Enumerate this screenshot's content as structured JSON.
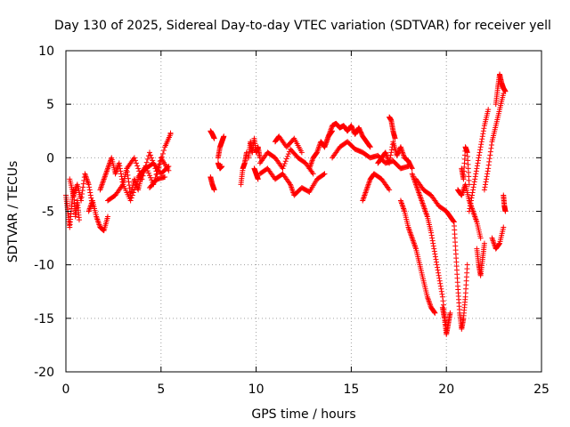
{
  "chart_data": {
    "type": "scatter",
    "title": "Day 130 of 2025, Sidereal Day-to-day VTEC variation (SDTVAR) for receiver yell",
    "xlabel": "GPS time / hours",
    "ylabel": "SDTVAR / TECUs",
    "xlim": [
      0,
      25
    ],
    "ylim": [
      -20,
      10
    ],
    "grid": true,
    "marker": "+",
    "color": "#ff0000",
    "xticks": [
      0,
      5,
      10,
      15,
      20,
      25
    ],
    "yticks": [
      -20,
      -15,
      -10,
      -5,
      0,
      5,
      10
    ],
    "xtick_labels": [
      "0",
      "5",
      "10",
      "15",
      "20",
      "25"
    ],
    "ytick_labels": [
      "-20",
      "-15",
      "-10",
      "-5",
      "0",
      "5",
      "10"
    ],
    "series": [
      {
        "name": "SDTVAR",
        "traces": [
          {
            "x": [
              0.0,
              0.1,
              0.2,
              0.3,
              0.4,
              0.5,
              0.6,
              0.7
            ],
            "y": [
              -3.5,
              -5.0,
              -6.5,
              -4.5,
              -3.0,
              -5.5,
              -4.0,
              -5.8
            ]
          },
          {
            "x": [
              0.2,
              0.4,
              0.6,
              0.8,
              1.0,
              1.2,
              1.4
            ],
            "y": [
              -2.0,
              -3.5,
              -2.5,
              -4.0,
              -1.5,
              -2.5,
              -4.5
            ]
          },
          {
            "x": [
              1.2,
              1.4,
              1.6,
              1.8,
              2.0,
              2.2
            ],
            "y": [
              -5.0,
              -4.0,
              -5.5,
              -6.5,
              -6.8,
              -5.5
            ]
          },
          {
            "x": [
              1.8,
              2.0,
              2.2,
              2.4,
              2.6,
              2.8,
              3.0,
              3.2,
              3.4,
              3.6,
              3.8,
              4.0
            ],
            "y": [
              -3.0,
              -2.0,
              -1.0,
              0.0,
              -1.5,
              -0.5,
              -2.5,
              -1.0,
              -3.5,
              -2.0,
              -3.0,
              -1.5
            ]
          },
          {
            "x": [
              2.2,
              2.6,
              3.0,
              3.4,
              3.8,
              4.2,
              4.6,
              5.0,
              5.4
            ],
            "y": [
              -4.0,
              -3.5,
              -2.5,
              -4.0,
              -2.0,
              -1.0,
              -0.5,
              -1.5,
              -0.8
            ]
          },
          {
            "x": [
              3.2,
              3.6,
              4.0,
              4.4,
              4.8,
              5.2,
              5.5
            ],
            "y": [
              -1.0,
              0.0,
              -2.0,
              0.5,
              -1.5,
              1.0,
              2.2
            ]
          },
          {
            "x": [
              3.8,
              4.2,
              4.6,
              5.0,
              5.4
            ],
            "y": [
              -1.8,
              -0.8,
              -2.5,
              0.0,
              -1.2
            ]
          },
          {
            "x": [
              4.4,
              4.8,
              5.2
            ],
            "y": [
              -2.8,
              -2.0,
              -1.8
            ]
          },
          {
            "x": [
              5.5
            ],
            "y": [
              2.3
            ]
          },
          {
            "x": [
              7.6,
              7.7,
              7.8
            ],
            "y": [
              2.5,
              2.2,
              1.8
            ]
          },
          {
            "x": [
              7.6,
              7.7,
              7.8
            ],
            "y": [
              -1.8,
              -2.5,
              -3.0
            ]
          },
          {
            "x": [
              8.0,
              8.1,
              8.2,
              8.3
            ],
            "y": [
              0.0,
              1.0,
              1.5,
              2.0
            ]
          },
          {
            "x": [
              8.0,
              8.1,
              8.2
            ],
            "y": [
              -0.5,
              -1.0,
              -0.8
            ]
          },
          {
            "x": [
              9.2,
              9.3,
              9.4,
              9.5
            ],
            "y": [
              -2.5,
              -1.0,
              -0.5,
              0.5
            ]
          },
          {
            "x": [
              9.6,
              9.7,
              9.8,
              9.9,
              10.0,
              10.1,
              10.2
            ],
            "y": [
              0.0,
              1.5,
              0.5,
              1.8,
              0.5,
              1.0,
              0.0
            ]
          },
          {
            "x": [
              9.9,
              10.0,
              10.1
            ],
            "y": [
              -1.0,
              -1.5,
              -2.0
            ]
          },
          {
            "x": [
              10.2,
              10.6,
              11.0,
              11.4,
              11.8,
              12.2,
              12.6,
              13.0
            ],
            "y": [
              -0.5,
              0.5,
              0.0,
              -1.0,
              0.8,
              0.0,
              -0.5,
              -1.5
            ]
          },
          {
            "x": [
              10.2,
              10.6,
              11.0,
              11.4,
              11.8,
              12.0,
              12.4,
              12.8,
              13.2,
              13.6
            ],
            "y": [
              -1.5,
              -1.0,
              -2.0,
              -1.5,
              -2.5,
              -3.5,
              -2.8,
              -3.2,
              -2.0,
              -1.5
            ]
          },
          {
            "x": [
              11.0,
              11.2,
              11.6,
              12.0,
              12.4
            ],
            "y": [
              1.5,
              2.0,
              1.0,
              1.8,
              0.5
            ]
          },
          {
            "x": [
              12.8,
              13.0,
              13.2,
              13.4,
              13.6,
              13.8,
              14.0
            ],
            "y": [
              -1.0,
              0.0,
              0.5,
              1.5,
              1.0,
              2.0,
              2.5
            ]
          },
          {
            "x": [
              13.6,
              13.8,
              14.0,
              14.2,
              14.4,
              14.6,
              14.8,
              15.0,
              15.2,
              15.4,
              15.6,
              15.8,
              16.0
            ],
            "y": [
              1.0,
              2.0,
              3.0,
              3.2,
              2.8,
              3.0,
              2.5,
              3.0,
              2.2,
              2.8,
              2.0,
              1.5,
              1.0
            ]
          },
          {
            "x": [
              14.0,
              14.4,
              14.8,
              15.2,
              15.6,
              16.0,
              16.4,
              16.8,
              17.2,
              17.6,
              18.0
            ],
            "y": [
              0.0,
              1.0,
              1.5,
              0.8,
              0.5,
              0.0,
              0.2,
              -0.5,
              -0.3,
              -1.0,
              -0.8
            ]
          },
          {
            "x": [
              15.6,
              15.8,
              16.0,
              16.2,
              16.6,
              17.0
            ],
            "y": [
              -4.0,
              -3.0,
              -2.0,
              -1.5,
              -2.0,
              -3.0
            ]
          },
          {
            "x": [
              16.4,
              16.6,
              16.8,
              17.0,
              17.2,
              17.4,
              17.6,
              17.8,
              18.0,
              18.2
            ],
            "y": [
              -0.5,
              0.0,
              0.5,
              -0.5,
              1.5,
              0.2,
              1.0,
              0.0,
              -0.3,
              -1.0
            ]
          },
          {
            "x": [
              17.0,
              17.1,
              17.2,
              17.3
            ],
            "y": [
              3.8,
              3.5,
              2.5,
              1.8
            ]
          },
          {
            "x": [
              17.6,
              17.8,
              18.0,
              18.2,
              18.4,
              18.6,
              18.8,
              19.0,
              19.2,
              19.4
            ],
            "y": [
              -4.0,
              -5.0,
              -6.5,
              -7.5,
              -8.5,
              -10.0,
              -11.5,
              -13.0,
              -14.0,
              -14.5
            ]
          },
          {
            "x": [
              18.2,
              18.4,
              18.6,
              18.8,
              19.0,
              19.2,
              19.4,
              19.6,
              19.8,
              20.0
            ],
            "y": [
              -1.5,
              -2.5,
              -3.5,
              -4.5,
              -5.5,
              -7.0,
              -9.0,
              -11.0,
              -13.0,
              -16.0
            ]
          },
          {
            "x": [
              18.4,
              18.8,
              19.2,
              19.6,
              20.0,
              20.2,
              20.4
            ],
            "y": [
              -2.0,
              -3.0,
              -3.5,
              -4.5,
              -5.0,
              -5.5,
              -6.0
            ]
          },
          {
            "x": [
              19.8,
              19.9,
              20.0,
              20.1,
              20.2
            ],
            "y": [
              -14.0,
              -15.0,
              -16.5,
              -15.5,
              -14.5
            ]
          },
          {
            "x": [
              20.4,
              20.5,
              20.6,
              20.7,
              20.8,
              20.9,
              21.0,
              21.1
            ],
            "y": [
              -6.0,
              -9.0,
              -12.0,
              -14.5,
              -16.0,
              -15.0,
              -13.0,
              -10.0
            ]
          },
          {
            "x": [
              20.6,
              20.8,
              21.0,
              21.2,
              21.4,
              21.6,
              21.8
            ],
            "y": [
              -3.0,
              -3.5,
              -2.5,
              -4.0,
              -5.0,
              -6.0,
              -7.5
            ]
          },
          {
            "x": [
              20.8,
              20.9,
              21.0,
              21.1,
              21.2
            ],
            "y": [
              -1.0,
              -2.0,
              1.0,
              0.5,
              -2.5
            ]
          },
          {
            "x": [
              21.2,
              21.4,
              21.6,
              21.8,
              22.0,
              22.2
            ],
            "y": [
              -5.0,
              -3.0,
              -1.0,
              1.0,
              3.0,
              4.5
            ]
          },
          {
            "x": [
              21.6,
              21.7,
              21.8,
              21.9,
              22.0
            ],
            "y": [
              -8.5,
              -10.0,
              -11.0,
              -9.5,
              -8.0
            ]
          },
          {
            "x": [
              22.0,
              22.2,
              22.4,
              22.6,
              22.8,
              23.0
            ],
            "y": [
              -3.0,
              -1.0,
              1.5,
              3.0,
              4.5,
              6.0
            ]
          },
          {
            "x": [
              22.6,
              22.7,
              22.8,
              22.9,
              23.0,
              23.1
            ],
            "y": [
              5.0,
              6.5,
              7.8,
              7.0,
              6.5,
              6.2
            ]
          },
          {
            "x": [
              22.4,
              22.6,
              22.8,
              23.0
            ],
            "y": [
              -7.5,
              -8.5,
              -8.0,
              -6.5
            ]
          },
          {
            "x": [
              23.0,
              23.05,
              23.1
            ],
            "y": [
              -3.5,
              -4.5,
              -5.0
            ]
          }
        ]
      }
    ]
  }
}
